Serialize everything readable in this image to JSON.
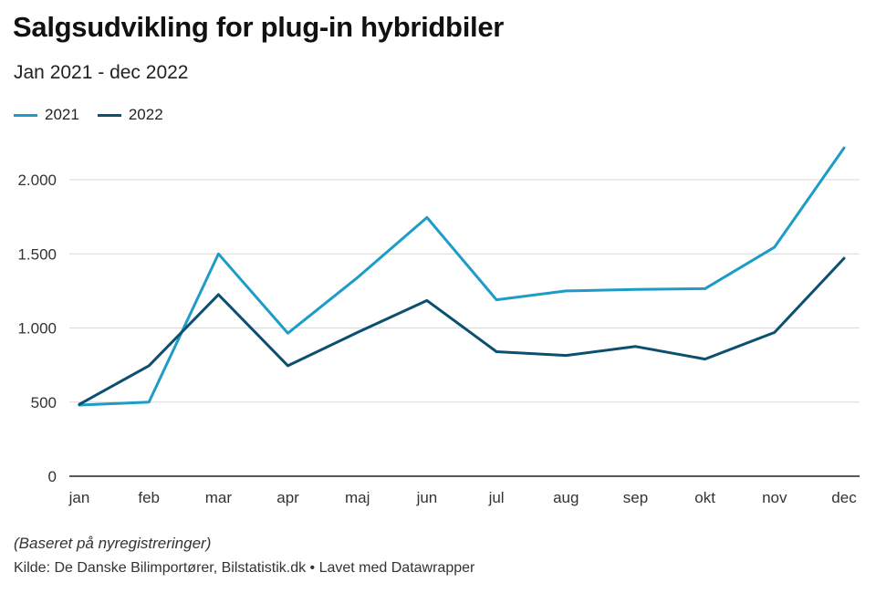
{
  "header": {
    "title": "Salgsudvikling for plug-in hybridbiler",
    "subtitle": "Jan 2021 - dec 2022"
  },
  "footer": {
    "note": "(Baseret på nyregistreringer)",
    "source": "Kilde: De Danske Bilimportører, Bilstatistik.dk • Lavet med Datawrapper"
  },
  "chart_data": {
    "type": "line",
    "title": "Salgsudvikling for plug-in hybridbiler",
    "subtitle": "Jan 2021 - dec 2022",
    "categories": [
      "jan",
      "feb",
      "mar",
      "apr",
      "maj",
      "jun",
      "jul",
      "aug",
      "sep",
      "okt",
      "nov",
      "dec"
    ],
    "series": [
      {
        "name": "2021",
        "color": "#1d9cc8",
        "values": [
          480,
          500,
          1500,
          965,
          1340,
          1745,
          1190,
          1250,
          1260,
          1265,
          1545,
          2215
        ]
      },
      {
        "name": "2022",
        "color": "#0b4f71",
        "values": [
          485,
          745,
          1225,
          745,
          970,
          1185,
          840,
          815,
          875,
          790,
          970,
          1470
        ]
      }
    ],
    "ylim": [
      0,
      2000
    ],
    "yticks": [
      {
        "value": 0,
        "label": "0"
      },
      {
        "value": 500,
        "label": "500"
      },
      {
        "value": 1000,
        "label": "1.000"
      },
      {
        "value": 1500,
        "label": "1.500"
      },
      {
        "value": 2000,
        "label": "2.000"
      }
    ],
    "xlabel": "",
    "ylabel": "",
    "grid": true,
    "legend_position": "top-left"
  }
}
